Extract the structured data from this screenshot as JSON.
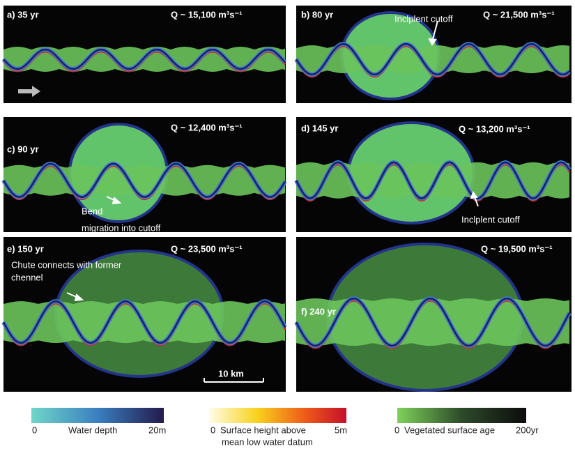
{
  "panels": [
    {
      "label": "a) 35 yr",
      "discharge": "Q ~ 15,100 m³s⁻¹"
    },
    {
      "label": "b) 80 yr",
      "discharge": "Q ~ 21,500 m³s⁻¹",
      "annotation": [
        "Inclplent cutoff"
      ]
    },
    {
      "label": "c) 90 yr",
      "discharge": "Q ~ 12,400 m³s⁻¹",
      "annotation": [
        "Bend",
        "migration into cutoff"
      ]
    },
    {
      "label": "d) 145 yr",
      "discharge": "Q ~ 13,200 m³s⁻¹",
      "annotation": [
        "Inclplent cutoff"
      ]
    },
    {
      "label": "e) 150 yr",
      "discharge": "Q ~ 23,500 m³s⁻¹",
      "annotation": [
        "Chute connects with former",
        "chennel"
      ]
    },
    {
      "label": "f) 240 yr",
      "discharge": "Q ~ 19,500 m³s⁻¹"
    }
  ],
  "scale_bar": "10 km",
  "colorbars": [
    {
      "min": "0",
      "title": "Water depth",
      "max": "20m"
    },
    {
      "min": "0",
      "title": "Surface height above",
      "max": "5m",
      "subtitle": "mean low water datum"
    },
    {
      "min": "0",
      "title": "Vegetated surface age",
      "max": "200yr"
    }
  ]
}
